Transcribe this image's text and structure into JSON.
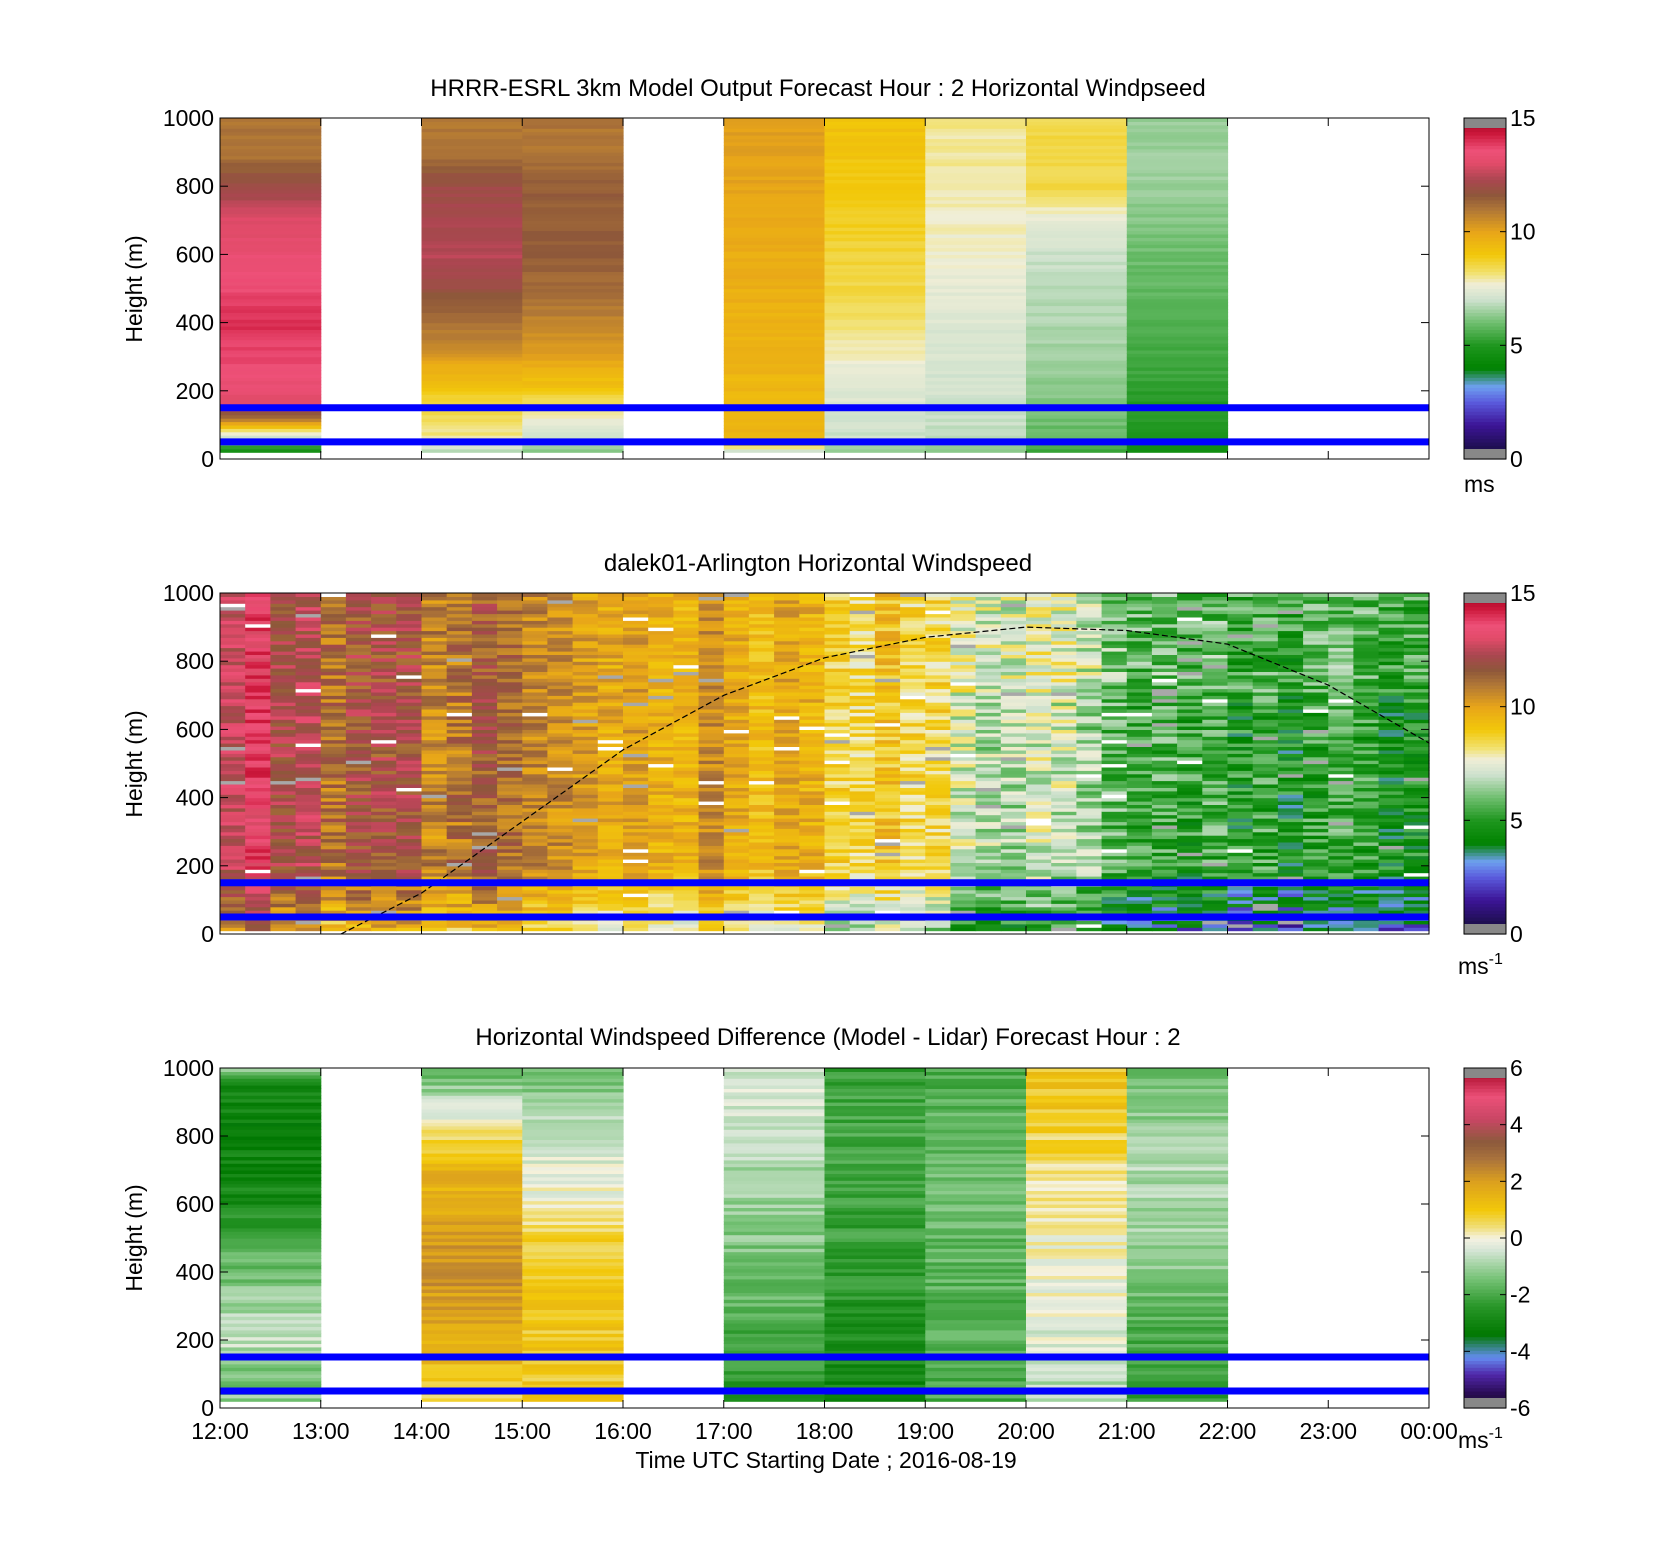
{
  "figure": {
    "xlabel": "Time UTC  Starting Date ; 2016-08-19",
    "x_ticks": [
      "12:00",
      "13:00",
      "14:00",
      "15:00",
      "16:00",
      "17:00",
      "18:00",
      "19:00",
      "20:00",
      "21:00",
      "22:00",
      "23:00",
      "00:00"
    ],
    "y_ticks": [
      "0",
      "200",
      "400",
      "600",
      "800",
      "1000"
    ],
    "ylabel": "Height (m)",
    "reference_lines_m": [
      50,
      150
    ],
    "reference_line_color": "#0000ff"
  },
  "chart_data": [
    {
      "type": "heatmap",
      "title": "HRRR-ESRL 3km Model Output   Forecast Hour : 2 Horizontal Windpseed",
      "ylabel": "Height (m)",
      "xlim_hours_utc": [
        12,
        24
      ],
      "ylim": [
        0,
        1000
      ],
      "colorbar": {
        "ticks": [
          "0",
          "5",
          "10",
          "15"
        ],
        "range": [
          0,
          15
        ],
        "unit_label": "ms",
        "unit_sup": ""
      },
      "hourly_columns": [
        {
          "hour": "12:00",
          "profile": [
            [
              0,
              3
            ],
            [
              30,
              5
            ],
            [
              50,
              6
            ],
            [
              80,
              8
            ],
            [
              120,
              11
            ],
            [
              160,
              13
            ],
            [
              240,
              13.5
            ],
            [
              400,
              14
            ],
            [
              700,
              13
            ],
            [
              800,
              12
            ],
            [
              900,
              11
            ],
            [
              1000,
              11
            ]
          ]
        },
        {
          "hour": "13:00",
          "profile": null
        },
        {
          "hour": "14:00",
          "profile": [
            [
              0,
              5
            ],
            [
              30,
              7
            ],
            [
              60,
              8
            ],
            [
              150,
              8.5
            ],
            [
              250,
              9.5
            ],
            [
              320,
              10.5
            ],
            [
              450,
              11.5
            ],
            [
              600,
              12.5
            ],
            [
              800,
              12
            ],
            [
              900,
              11
            ],
            [
              1000,
              11
            ]
          ]
        },
        {
          "hour": "15:00",
          "profile": [
            [
              0,
              5
            ],
            [
              30,
              6.5
            ],
            [
              60,
              7
            ],
            [
              150,
              8
            ],
            [
              200,
              9
            ],
            [
              300,
              10
            ],
            [
              450,
              11
            ],
            [
              600,
              11.5
            ],
            [
              800,
              11.5
            ],
            [
              900,
              11
            ],
            [
              1000,
              11
            ]
          ]
        },
        {
          "hour": "16:00",
          "profile": null
        },
        {
          "hour": "17:00",
          "profile": [
            [
              0,
              3
            ],
            [
              30,
              8
            ],
            [
              60,
              9.5
            ],
            [
              200,
              9.5
            ],
            [
              500,
              9.7
            ],
            [
              800,
              10
            ],
            [
              1000,
              10.2
            ]
          ]
        },
        {
          "hour": "18:00",
          "profile": [
            [
              0,
              6
            ],
            [
              30,
              6.5
            ],
            [
              60,
              7
            ],
            [
              150,
              7.2
            ],
            [
              250,
              7.5
            ],
            [
              350,
              8
            ],
            [
              500,
              8.5
            ],
            [
              700,
              8.8
            ],
            [
              900,
              9.1
            ],
            [
              1000,
              9.2
            ]
          ]
        },
        {
          "hour": "19:00",
          "profile": [
            [
              0,
              5.5
            ],
            [
              30,
              6.5
            ],
            [
              100,
              7
            ],
            [
              300,
              7.2
            ],
            [
              450,
              7.4
            ],
            [
              600,
              7.7
            ],
            [
              800,
              7.9
            ],
            [
              900,
              8
            ],
            [
              1000,
              8
            ]
          ]
        },
        {
          "hour": "20:00",
          "profile": [
            [
              0,
              5
            ],
            [
              30,
              5.5
            ],
            [
              100,
              6
            ],
            [
              300,
              6.5
            ],
            [
              600,
              7
            ],
            [
              700,
              7.5
            ],
            [
              800,
              8.5
            ],
            [
              1000,
              8.5
            ]
          ]
        },
        {
          "hour": "21:00",
          "profile": [
            [
              0,
              4
            ],
            [
              30,
              4.5
            ],
            [
              100,
              5
            ],
            [
              300,
              5.5
            ],
            [
              600,
              6
            ],
            [
              800,
              6.5
            ],
            [
              1000,
              6.5
            ]
          ]
        },
        {
          "hour": "22:00",
          "profile": null
        },
        {
          "hour": "23:00",
          "profile": null
        }
      ]
    },
    {
      "type": "heatmap",
      "title": "dalek01-Arlington  Horizontal Windspeed",
      "ylabel": "Height (m)",
      "xlim_hours_utc": [
        12,
        24
      ],
      "ylim": [
        0,
        1000
      ],
      "colorbar": {
        "ticks": [
          "0",
          "5",
          "10",
          "15"
        ],
        "range": [
          0,
          15
        ],
        "unit_label": "ms",
        "unit_sup": "-1"
      },
      "time_step_minutes": 15,
      "anchor_speeds": [
        [
          12.0,
          13.5,
          0.8
        ],
        [
          12.5,
          13.0,
          0.8
        ],
        [
          13.0,
          11.5,
          1.0
        ],
        [
          13.5,
          11.8,
          1.0
        ],
        [
          14.0,
          11.0,
          1.0
        ],
        [
          14.5,
          11.0,
          1.0
        ],
        [
          15.0,
          10.8,
          0.8
        ],
        [
          15.5,
          10.2,
          0.8
        ],
        [
          16.0,
          10.0,
          0.7
        ],
        [
          16.5,
          10.0,
          0.7
        ],
        [
          17.0,
          10.0,
          0.7
        ],
        [
          17.5,
          9.6,
          0.7
        ],
        [
          18.0,
          9.3,
          0.8
        ],
        [
          18.5,
          8.8,
          1.0
        ],
        [
          19.0,
          8.4,
          1.0
        ],
        [
          19.5,
          7.6,
          1.2
        ],
        [
          20.0,
          6.8,
          1.2
        ],
        [
          20.5,
          6.3,
          1.2
        ],
        [
          21.0,
          5.9,
          1.2
        ],
        [
          21.5,
          5.6,
          1.3
        ],
        [
          22.0,
          5.4,
          1.3
        ],
        [
          22.5,
          5.2,
          1.3
        ],
        [
          23.0,
          5.0,
          1.2
        ],
        [
          23.5,
          4.9,
          1.2
        ],
        [
          23.8,
          5.0,
          1.2
        ]
      ],
      "data_end_hour": 23.95,
      "dashed_curve_points": [
        [
          13.2,
          0
        ],
        [
          14,
          120
        ],
        [
          15,
          330
        ],
        [
          16,
          540
        ],
        [
          17,
          700
        ],
        [
          18,
          810
        ],
        [
          19,
          870
        ],
        [
          20,
          900
        ],
        [
          21,
          890
        ],
        [
          22,
          850
        ],
        [
          23,
          730
        ],
        [
          24,
          560
        ]
      ]
    },
    {
      "type": "heatmap",
      "title": "Horizontal Windspeed Difference (Model - Lidar) Forecast Hour : 2",
      "ylabel": "Height (m)",
      "xlim_hours_utc": [
        12,
        24
      ],
      "ylim": [
        0,
        1000
      ],
      "colorbar": {
        "ticks": [
          "-6",
          "-4",
          "-2",
          "0",
          "2",
          "4",
          " 6"
        ],
        "range": [
          -6,
          6
        ],
        "unit_label": "ms",
        "unit_sup": "-1"
      },
      "hourly_columns": [
        {
          "hour": "12:00",
          "profile": [
            [
              0,
              -1
            ],
            [
              100,
              -1.5
            ],
            [
              200,
              -0.5
            ],
            [
              400,
              -1.5
            ],
            [
              600,
              -2.8
            ],
            [
              800,
              -3
            ],
            [
              950,
              -3
            ],
            [
              1000,
              -1
            ]
          ]
        },
        {
          "hour": "13:00",
          "profile": null
        },
        {
          "hour": "14:00",
          "profile": [
            [
              50,
              0.5
            ],
            [
              150,
              1.5
            ],
            [
              400,
              2.2
            ],
            [
              700,
              1.5
            ],
            [
              900,
              -0.5
            ],
            [
              1000,
              -2
            ]
          ]
        },
        {
          "hour": "15:00",
          "profile": [
            [
              0,
              0.8
            ],
            [
              150,
              1
            ],
            [
              500,
              0.9
            ],
            [
              600,
              0
            ],
            [
              800,
              -0.5
            ],
            [
              1000,
              -1.5
            ]
          ]
        },
        {
          "hour": "16:00",
          "profile": null
        },
        {
          "hour": "17:00",
          "profile": [
            [
              0,
              -2.5
            ],
            [
              200,
              -2
            ],
            [
              600,
              -1
            ],
            [
              900,
              -0.5
            ],
            [
              1000,
              -0.3
            ]
          ]
        },
        {
          "hour": "18:00",
          "profile": [
            [
              0,
              -3
            ],
            [
              300,
              -2.5
            ],
            [
              700,
              -2
            ],
            [
              1000,
              -2.2
            ]
          ]
        },
        {
          "hour": "19:00",
          "profile": [
            [
              0,
              -2
            ],
            [
              300,
              -1.8
            ],
            [
              700,
              -1.5
            ],
            [
              1000,
              -2
            ]
          ]
        },
        {
          "hour": "20:00",
          "profile": [
            [
              0,
              -1
            ],
            [
              200,
              -0.3
            ],
            [
              400,
              0
            ],
            [
              650,
              0.3
            ],
            [
              900,
              1
            ],
            [
              1000,
              1
            ]
          ]
        },
        {
          "hour": "21:00",
          "profile": [
            [
              0,
              -2.3
            ],
            [
              200,
              -2
            ],
            [
              500,
              -1
            ],
            [
              700,
              -0.8
            ],
            [
              1000,
              -1.5
            ]
          ]
        },
        {
          "hour": "22:00",
          "profile": null
        },
        {
          "hour": "23:00",
          "profile": null
        }
      ]
    }
  ]
}
